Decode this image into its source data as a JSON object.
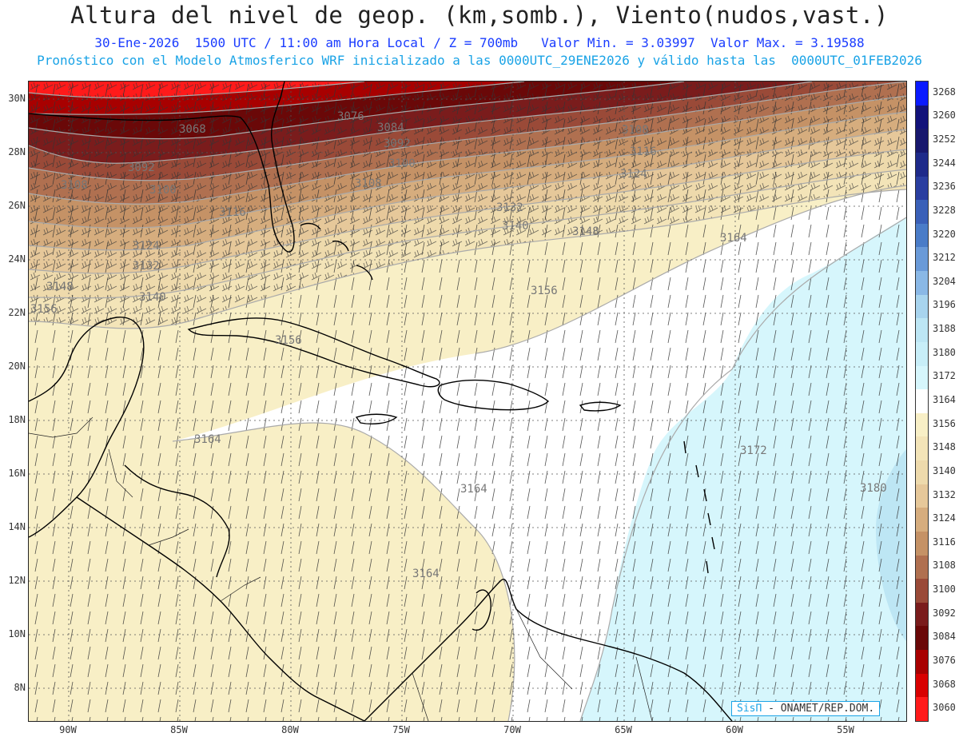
{
  "header": {
    "title": "Altura del nivel de geop. (km,somb.), Viento(nudos,vast.)",
    "subtitle_1": "30-Ene-2026  1500 UTC / 11:00 am Hora Local / Z = 700mb   Valor Min. = 3.03997  Valor Max. = 3.19588",
    "subtitle_2": "Pronóstico con el Modelo Atmosferico WRF inicializado a las 0000UTC_29ENE2026 y válido hasta las  0000UTC_01FEB2026"
  },
  "map": {
    "lat_labels": [
      "30N",
      "28N",
      "26N",
      "24N",
      "22N",
      "20N",
      "18N",
      "16N",
      "14N",
      "12N",
      "10N",
      "8N"
    ],
    "lon_labels": [
      "90W",
      "85W",
      "80W",
      "75W",
      "70W",
      "65W",
      "60W",
      "55W"
    ],
    "contour_labels": [
      "3068",
      "3076",
      "3084",
      "3092",
      "3092",
      "3100",
      "3100",
      "3108",
      "3108",
      "3108",
      "3116",
      "3116",
      "3124",
      "3124",
      "3132",
      "3132",
      "3140",
      "3140",
      "3148",
      "3148",
      "3156",
      "3156",
      "3156",
      "3164",
      "3164",
      "3164",
      "3164",
      "3172",
      "3180"
    ]
  },
  "colorbar": {
    "labels": [
      "3268",
      "3260",
      "3252",
      "3244",
      "3236",
      "3228",
      "3220",
      "3212",
      "3204",
      "3196",
      "3188",
      "3180",
      "3172",
      "3164",
      "3156",
      "3148",
      "3140",
      "3132",
      "3124",
      "3116",
      "3108",
      "3100",
      "3092",
      "3084",
      "3076",
      "3068",
      "3060"
    ],
    "colors": [
      "#0a1aff",
      "#12127a",
      "#18186e",
      "#1e2a8a",
      "#2a3ea0",
      "#3a60b8",
      "#4a7cc8",
      "#6a9ad8",
      "#8ab8e6",
      "#a8d4ee",
      "#bde6f4",
      "#c8eef8",
      "#d6f6fc",
      "#ffffff",
      "#f8efc6",
      "#f3e4b8",
      "#eedaac",
      "#e6c89a",
      "#d6ad7e",
      "#c59266",
      "#b07050",
      "#9a4a38",
      "#7a1c1c",
      "#6a0808",
      "#a80000",
      "#d80000",
      "#ff1a1a"
    ]
  },
  "credit": {
    "brand": "SisΠ",
    "text": " - ONAMET/REP.DOM."
  }
}
